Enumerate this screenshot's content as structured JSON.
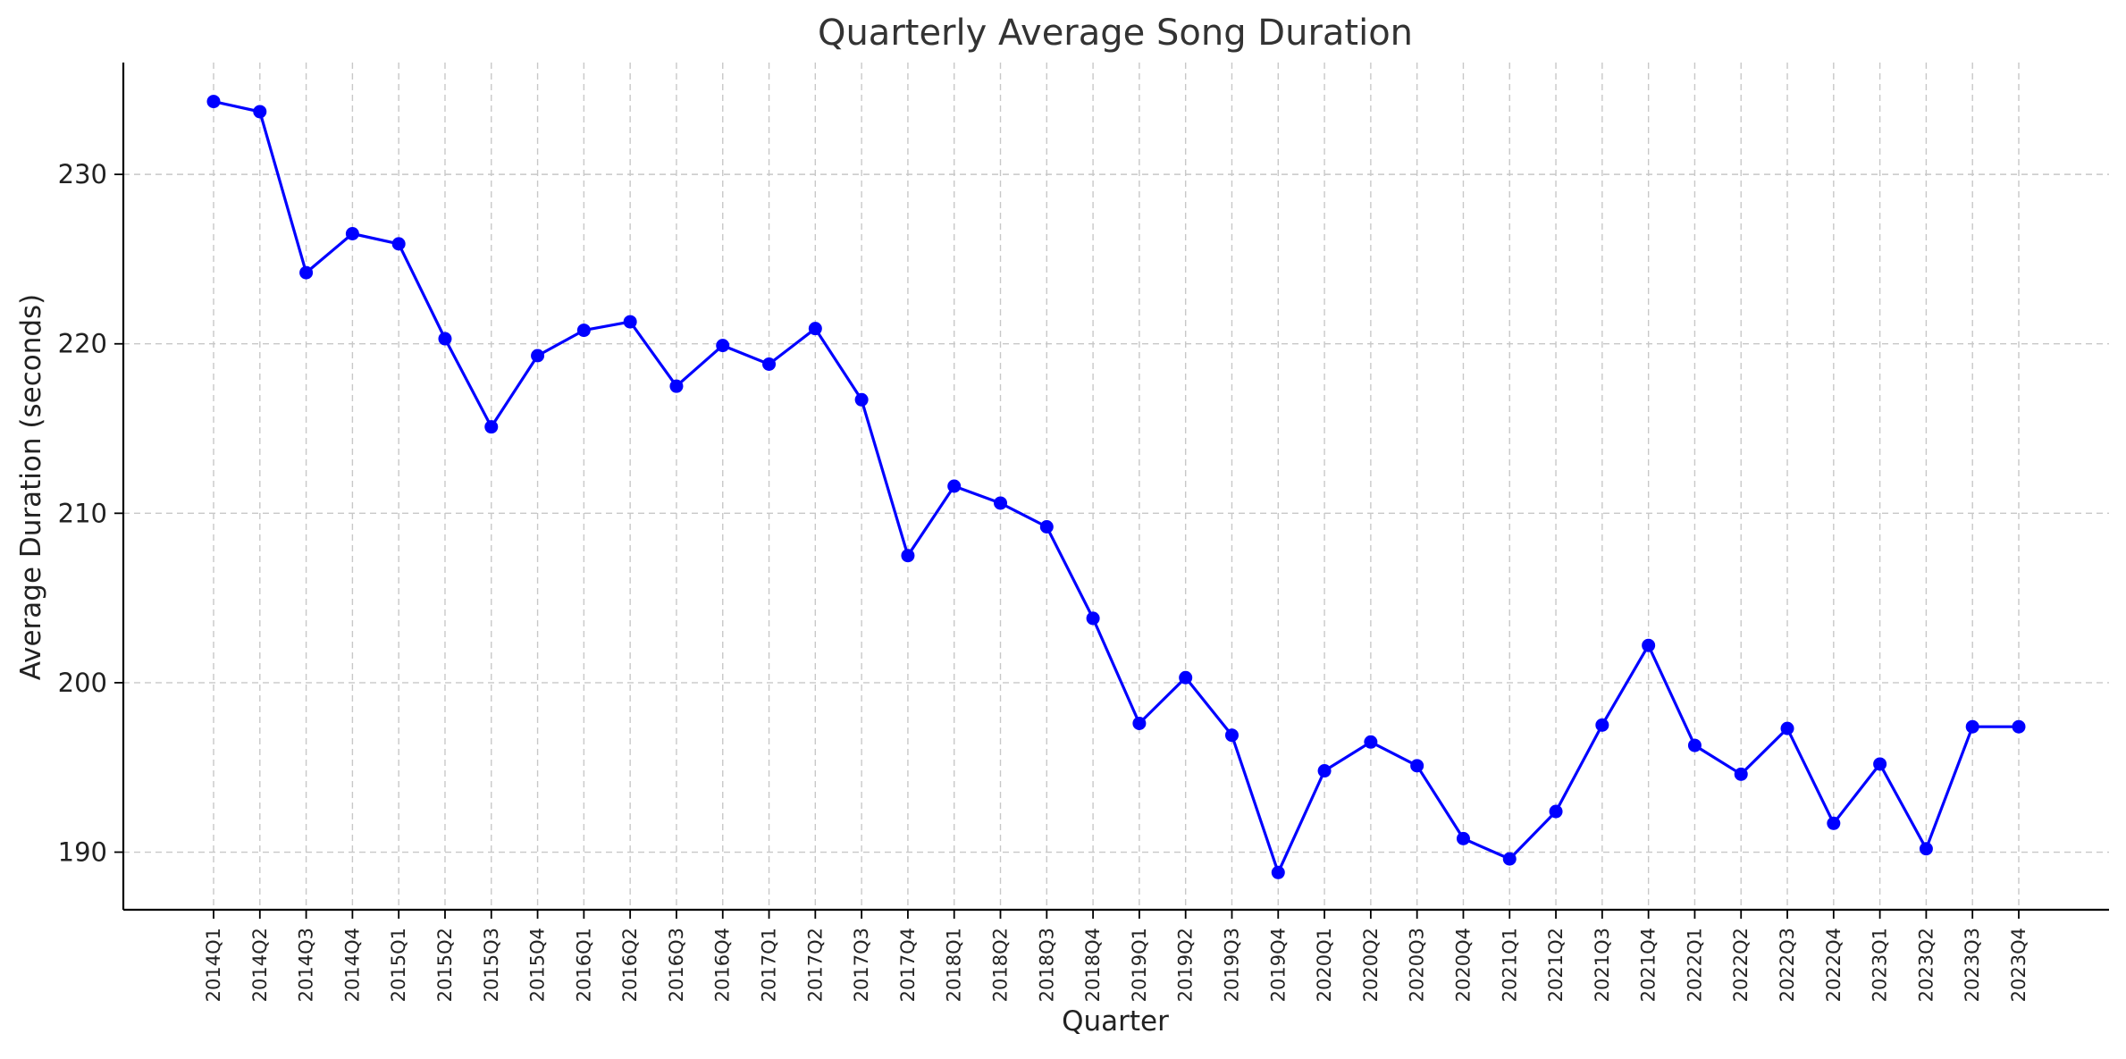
{
  "chart_data": {
    "type": "line",
    "title": "Quarterly Average Song Duration",
    "xlabel": "Quarter",
    "ylabel": "Average Duration (seconds)",
    "ylim": [
      186.6,
      236.6
    ],
    "yticks": [
      190,
      200,
      210,
      220,
      230
    ],
    "grid": true,
    "line_color": "#0000ff",
    "categories": [
      "2014Q1",
      "2014Q2",
      "2014Q3",
      "2014Q4",
      "2015Q1",
      "2015Q2",
      "2015Q3",
      "2015Q4",
      "2016Q1",
      "2016Q2",
      "2016Q3",
      "2016Q4",
      "2017Q1",
      "2017Q2",
      "2017Q3",
      "2017Q4",
      "2018Q1",
      "2018Q2",
      "2018Q3",
      "2018Q4",
      "2019Q1",
      "2019Q2",
      "2019Q3",
      "2019Q4",
      "2020Q1",
      "2020Q2",
      "2020Q3",
      "2020Q4",
      "2021Q1",
      "2021Q2",
      "2021Q3",
      "2021Q4",
      "2022Q1",
      "2022Q2",
      "2022Q3",
      "2022Q4",
      "2023Q1",
      "2023Q2",
      "2023Q3",
      "2023Q4"
    ],
    "values": [
      234.3,
      233.7,
      224.2,
      226.5,
      225.9,
      220.3,
      215.1,
      219.3,
      220.8,
      221.3,
      217.5,
      219.9,
      218.8,
      220.9,
      216.7,
      207.5,
      211.6,
      210.6,
      209.2,
      203.8,
      197.6,
      200.3,
      196.9,
      188.8,
      194.8,
      196.5,
      195.1,
      190.8,
      189.6,
      192.4,
      197.5,
      202.2,
      196.3,
      194.6,
      197.3,
      191.7,
      195.2,
      190.2,
      197.4,
      197.4
    ]
  }
}
